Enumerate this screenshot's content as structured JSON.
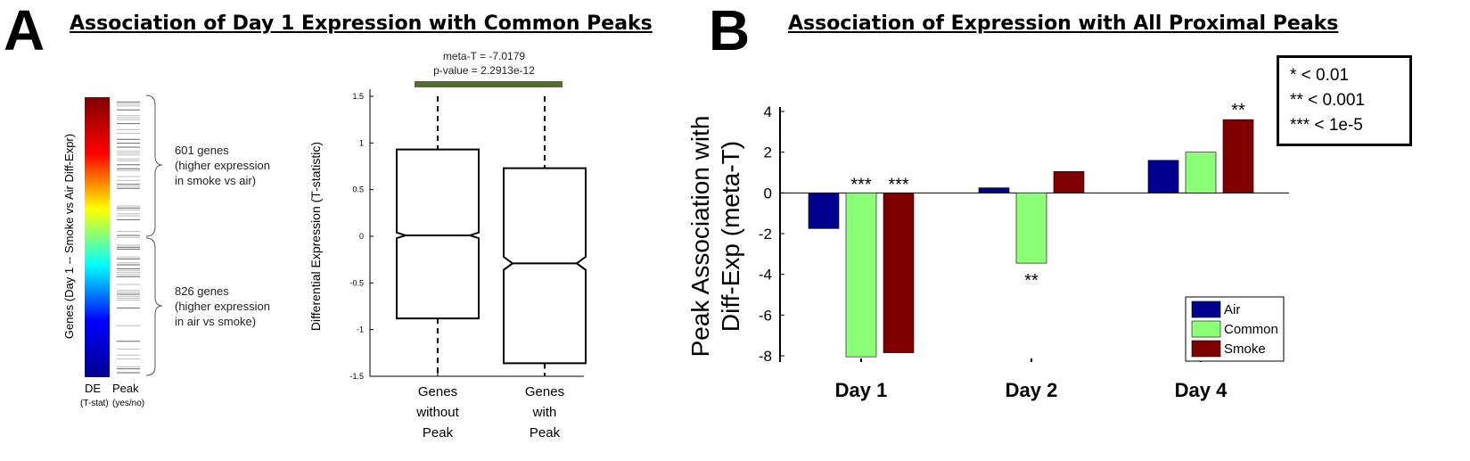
{
  "panel_a": {
    "letter": "A",
    "title": "Association of Day 1 Expression with Common Peaks",
    "heatmap": {
      "ylabel": "Genes (Day 1 -- Smoke vs Air Diff-Expr)",
      "de_label": "DE",
      "de_sub": "(T-stat)",
      "peak_label": "Peak",
      "peak_sub": "(yes/no)",
      "colormap": [
        "#800000",
        "#ff0000",
        "#ffff00",
        "#00ffff",
        "#0000ff",
        "#00008f"
      ]
    },
    "gene_groups": [
      {
        "count_label": "601 genes",
        "line1": "(higher expression",
        "line2": "in smoke vs air)"
      },
      {
        "count_label": "826 genes",
        "line1": "(higher expression",
        "line2": "in air vs smoke)"
      }
    ],
    "stats": {
      "meta_t": "meta-T = -7.0179",
      "pvalue": "p-value = 2.2913e-12",
      "bar_color": "#556b2f"
    }
  },
  "panel_b": {
    "letter": "B",
    "title": "Association of Expression with All Proximal Peaks",
    "significance_legend": [
      "* < 0.01",
      "** < 0.001",
      "*** < 1e-5"
    ]
  },
  "chart_data": [
    {
      "type": "box",
      "title": "",
      "xlabel": "",
      "ylabel": "Differential Expression (T-statistic)",
      "ylim": [
        -1.5,
        1.5
      ],
      "yticks": [
        "1.5",
        "1",
        "0.5",
        "0",
        "-0.5",
        "-1",
        "-1.5"
      ],
      "ytick_values": [
        1.5,
        1,
        0.5,
        0,
        -0.5,
        -1,
        -1.5
      ],
      "categories": [
        [
          "Genes",
          "without",
          "Peak"
        ],
        [
          "Genes",
          "with",
          "Peak"
        ]
      ],
      "boxes": [
        {
          "whisker_low": -1.5,
          "q1": -0.88,
          "median": 0.01,
          "q3": 0.93,
          "whisker_high": 1.5,
          "notch_low": -0.02,
          "notch_high": 0.04
        },
        {
          "whisker_low": -1.5,
          "q1": -1.36,
          "median": -0.29,
          "q3": 0.73,
          "whisker_high": 1.5,
          "notch_low": -0.36,
          "notch_high": -0.22
        }
      ],
      "notched": true
    },
    {
      "type": "bar",
      "title": "",
      "xlabel": "",
      "ylabel": "Peak Association with Diff-Exp (meta-T)",
      "ylim": [
        -8.5,
        4
      ],
      "yticks": [
        "4",
        "2",
        "0",
        "-2",
        "-4",
        "-6",
        "-8"
      ],
      "ytick_values": [
        4,
        2,
        0,
        -2,
        -4,
        -6,
        -8
      ],
      "categories": [
        "Day 1",
        "Day 2",
        "Day 4"
      ],
      "series": [
        {
          "name": "Air",
          "color": "#000090",
          "values": [
            -1.75,
            0.25,
            1.6
          ],
          "stars": [
            "",
            "",
            ""
          ]
        },
        {
          "name": "Common",
          "color": "#8cff78",
          "values": [
            -8.05,
            -3.45,
            2.0
          ],
          "stars": [
            "***",
            "**",
            ""
          ]
        },
        {
          "name": "Smoke",
          "color": "#800000",
          "values": [
            -7.85,
            1.05,
            3.6
          ],
          "stars": [
            "***",
            "",
            "**"
          ]
        }
      ],
      "legend": "bottom-right",
      "grid": false
    }
  ]
}
